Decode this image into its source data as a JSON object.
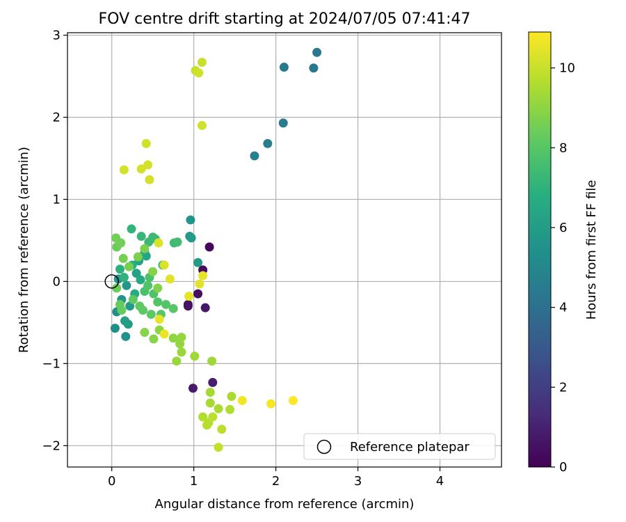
{
  "chart_data": {
    "type": "scatter",
    "title": "FOV centre drift starting at 2024/07/05 07:41:47",
    "xlabel": "Angular distance from reference (arcmin)",
    "ylabel": "Rotation from reference (arcmin)",
    "xlim": [
      -0.54,
      4.75
    ],
    "ylim": [
      -2.26,
      3.03
    ],
    "xticks": [
      0,
      1,
      2,
      3,
      4
    ],
    "yticks": [
      -2,
      -1,
      0,
      1,
      2,
      3
    ],
    "xtick_labels": [
      "0",
      "1",
      "2",
      "3",
      "4"
    ],
    "ytick_labels": [
      "−2",
      "−1",
      "0",
      "1",
      "2",
      "3"
    ],
    "grid": true,
    "colormap": "viridis",
    "colorbar": {
      "label": "Hours from first FF file",
      "range": [
        0,
        10.9
      ],
      "ticks": [
        0,
        2,
        4,
        6,
        8,
        10
      ],
      "tick_labels": [
        "0",
        "2",
        "4",
        "6",
        "8",
        "10"
      ]
    },
    "legend": {
      "position": "lower right",
      "entries": [
        {
          "label": "Reference platepar",
          "marker": "open-circle"
        }
      ]
    },
    "reference_point": {
      "x": 0,
      "y": 0
    },
    "points": [
      {
        "x": 1.19,
        "y": 0.42,
        "c": 0.2
      },
      {
        "x": 1.11,
        "y": 0.14,
        "c": 0.3
      },
      {
        "x": 1.05,
        "y": -0.15,
        "c": 0.4
      },
      {
        "x": 0.93,
        "y": -0.28,
        "c": 0.5
      },
      {
        "x": 0.93,
        "y": -0.3,
        "c": 0.6
      },
      {
        "x": 1.14,
        "y": -0.32,
        "c": 0.7
      },
      {
        "x": 0.99,
        "y": -1.3,
        "c": 0.8
      },
      {
        "x": 1.23,
        "y": -1.23,
        "c": 0.9
      },
      {
        "x": 2.5,
        "y": 2.79,
        "c": 4.3
      },
      {
        "x": 2.1,
        "y": 2.61,
        "c": 4.4
      },
      {
        "x": 2.46,
        "y": 2.6,
        "c": 4.4
      },
      {
        "x": 2.09,
        "y": 1.93,
        "c": 4.5
      },
      {
        "x": 1.9,
        "y": 1.68,
        "c": 4.6
      },
      {
        "x": 1.74,
        "y": 1.53,
        "c": 4.7
      },
      {
        "x": 0.96,
        "y": 0.75,
        "c": 5.6
      },
      {
        "x": 0.95,
        "y": 0.55,
        "c": 5.8
      },
      {
        "x": 0.97,
        "y": 0.53,
        "c": 5.9
      },
      {
        "x": 1.05,
        "y": 0.23,
        "c": 5.9
      },
      {
        "x": 0.04,
        "y": -0.57,
        "c": 5.3
      },
      {
        "x": 0.06,
        "y": -0.37,
        "c": 5.4
      },
      {
        "x": 0.17,
        "y": -0.67,
        "c": 5.5
      },
      {
        "x": 0.08,
        "y": 0.03,
        "c": 5.6
      },
      {
        "x": 0.12,
        "y": -0.22,
        "c": 5.7
      },
      {
        "x": 0.18,
        "y": -0.05,
        "c": 5.8
      },
      {
        "x": 0.22,
        "y": -0.3,
        "c": 5.9
      },
      {
        "x": 0.2,
        "y": -0.52,
        "c": 6.0
      },
      {
        "x": 0.16,
        "y": -0.48,
        "c": 6.1
      },
      {
        "x": 0.3,
        "y": 0.1,
        "c": 6.2
      },
      {
        "x": 0.33,
        "y": 0.25,
        "c": 6.3
      },
      {
        "x": 0.4,
        "y": 0.35,
        "c": 6.4
      },
      {
        "x": 0.42,
        "y": 0.31,
        "c": 6.5
      },
      {
        "x": 0.35,
        "y": 0.02,
        "c": 6.6
      },
      {
        "x": 0.28,
        "y": -0.15,
        "c": 6.7
      },
      {
        "x": 0.25,
        "y": 0.2,
        "c": 6.8
      },
      {
        "x": 0.1,
        "y": 0.15,
        "c": 6.9
      },
      {
        "x": 0.15,
        "y": 0.05,
        "c": 7.0
      },
      {
        "x": 0.24,
        "y": 0.64,
        "c": 7.1
      },
      {
        "x": 0.36,
        "y": 0.55,
        "c": 7.2
      },
      {
        "x": 0.45,
        "y": 0.48,
        "c": 7.3
      },
      {
        "x": 0.5,
        "y": 0.54,
        "c": 7.3
      },
      {
        "x": 0.53,
        "y": 0.52,
        "c": 7.4
      },
      {
        "x": 0.76,
        "y": 0.47,
        "c": 7.4
      },
      {
        "x": 0.8,
        "y": 0.48,
        "c": 7.5
      },
      {
        "x": 0.62,
        "y": 0.2,
        "c": 7.6
      },
      {
        "x": 0.46,
        "y": 0.05,
        "c": 7.7
      },
      {
        "x": 0.4,
        "y": -0.12,
        "c": 7.7
      },
      {
        "x": 0.44,
        "y": -0.05,
        "c": 7.8
      },
      {
        "x": 0.51,
        "y": -0.15,
        "c": 7.8
      },
      {
        "x": 0.56,
        "y": -0.25,
        "c": 7.9
      },
      {
        "x": 0.66,
        "y": -0.28,
        "c": 7.9
      },
      {
        "x": 0.75,
        "y": -0.33,
        "c": 8.0
      },
      {
        "x": 0.6,
        "y": -0.4,
        "c": 8.0
      },
      {
        "x": 0.48,
        "y": -0.4,
        "c": 8.1
      },
      {
        "x": 0.38,
        "y": -0.35,
        "c": 8.1
      },
      {
        "x": 0.34,
        "y": -0.3,
        "c": 8.2
      },
      {
        "x": 0.26,
        "y": -0.22,
        "c": 8.2
      },
      {
        "x": 0.12,
        "y": -0.35,
        "c": 8.3
      },
      {
        "x": 0.1,
        "y": -0.28,
        "c": 8.3
      },
      {
        "x": 0.06,
        "y": -0.08,
        "c": 8.4
      },
      {
        "x": 0.06,
        "y": 0.42,
        "c": 8.4
      },
      {
        "x": 0.05,
        "y": 0.53,
        "c": 8.5
      },
      {
        "x": 0.11,
        "y": 0.47,
        "c": 8.5
      },
      {
        "x": 0.14,
        "y": 0.28,
        "c": 8.6
      },
      {
        "x": 0.21,
        "y": 0.18,
        "c": 8.6
      },
      {
        "x": 0.32,
        "y": 0.3,
        "c": 8.7
      },
      {
        "x": 0.4,
        "y": 0.4,
        "c": 8.7
      },
      {
        "x": 0.5,
        "y": 0.12,
        "c": 8.8
      },
      {
        "x": 0.56,
        "y": -0.08,
        "c": 8.8
      },
      {
        "x": 0.4,
        "y": -0.62,
        "c": 8.9
      },
      {
        "x": 0.51,
        "y": -0.7,
        "c": 8.9
      },
      {
        "x": 0.58,
        "y": -0.59,
        "c": 9.0
      },
      {
        "x": 0.75,
        "y": -0.69,
        "c": 9.0
      },
      {
        "x": 0.85,
        "y": -0.68,
        "c": 9.1
      },
      {
        "x": 0.83,
        "y": -0.76,
        "c": 9.1
      },
      {
        "x": 0.85,
        "y": -0.86,
        "c": 9.2
      },
      {
        "x": 0.79,
        "y": -0.97,
        "c": 9.2
      },
      {
        "x": 1.01,
        "y": -0.91,
        "c": 9.3
      },
      {
        "x": 1.22,
        "y": -0.97,
        "c": 9.3
      },
      {
        "x": 1.2,
        "y": -1.35,
        "c": 9.4
      },
      {
        "x": 1.2,
        "y": -1.48,
        "c": 9.4
      },
      {
        "x": 1.3,
        "y": -1.55,
        "c": 9.5
      },
      {
        "x": 1.46,
        "y": -1.4,
        "c": 9.5
      },
      {
        "x": 1.44,
        "y": -1.56,
        "c": 9.6
      },
      {
        "x": 1.11,
        "y": -1.65,
        "c": 9.6
      },
      {
        "x": 1.16,
        "y": -1.75,
        "c": 9.7
      },
      {
        "x": 1.18,
        "y": -1.72,
        "c": 9.7
      },
      {
        "x": 1.23,
        "y": -1.65,
        "c": 9.8
      },
      {
        "x": 1.34,
        "y": -1.8,
        "c": 9.8
      },
      {
        "x": 1.3,
        "y": -2.02,
        "c": 9.9
      },
      {
        "x": 1.1,
        "y": 2.67,
        "c": 10.0
      },
      {
        "x": 1.02,
        "y": 2.57,
        "c": 10.0
      },
      {
        "x": 1.06,
        "y": 2.54,
        "c": 10.1
      },
      {
        "x": 1.1,
        "y": 1.9,
        "c": 10.1
      },
      {
        "x": 0.42,
        "y": 1.68,
        "c": 10.1
      },
      {
        "x": 0.15,
        "y": 1.36,
        "c": 10.2
      },
      {
        "x": 0.36,
        "y": 1.37,
        "c": 10.2
      },
      {
        "x": 0.44,
        "y": 1.42,
        "c": 10.2
      },
      {
        "x": 0.46,
        "y": 1.24,
        "c": 10.2
      },
      {
        "x": 0.57,
        "y": 0.47,
        "c": 10.3
      },
      {
        "x": 0.64,
        "y": 0.2,
        "c": 10.3
      },
      {
        "x": 0.71,
        "y": 0.03,
        "c": 10.4
      },
      {
        "x": 1.07,
        "y": -0.03,
        "c": 10.4
      },
      {
        "x": 1.11,
        "y": 0.07,
        "c": 10.5
      },
      {
        "x": 0.94,
        "y": -0.18,
        "c": 10.5
      },
      {
        "x": 0.58,
        "y": -0.46,
        "c": 10.5
      },
      {
        "x": 0.64,
        "y": -0.64,
        "c": 10.6
      },
      {
        "x": 1.59,
        "y": -1.45,
        "c": 10.7
      },
      {
        "x": 1.94,
        "y": -1.49,
        "c": 10.8
      },
      {
        "x": 2.21,
        "y": -1.45,
        "c": 10.85
      }
    ]
  }
}
